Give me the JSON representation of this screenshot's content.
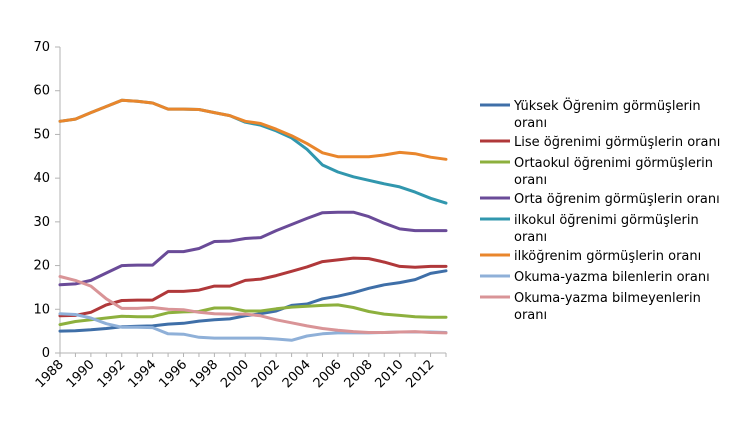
{
  "chart_data": {
    "type": "line",
    "title": "",
    "xlabel": "",
    "ylabel": "",
    "ylim": [
      0,
      70
    ],
    "yticks": [
      0,
      10,
      20,
      30,
      40,
      50,
      60,
      70
    ],
    "xlim": [
      1988,
      2013
    ],
    "xtick_labels": [
      "1988",
      "1990",
      "1992",
      "1994",
      "1996",
      "1998",
      "2000",
      "2002",
      "2004",
      "2006",
      "2008",
      "2010",
      "2012"
    ],
    "grid": false,
    "legend_position": "right",
    "x": [
      1988,
      1989,
      1990,
      1991,
      1992,
      1993,
      1994,
      1995,
      1996,
      1997,
      1998,
      1999,
      2000,
      2001,
      2002,
      2003,
      2004,
      2005,
      2006,
      2007,
      2008,
      2009,
      2010,
      2011,
      2012,
      2013
    ],
    "series": [
      {
        "name": "Yüksek Öğrenim görmüşlerin oranı",
        "legend_lines": [
          "Yüksek Öğrenim görmüşlerin",
          "oranı"
        ],
        "color": "#3F6FA8",
        "values": [
          5,
          5.1,
          5.3,
          5.6,
          6,
          6.1,
          6.2,
          6.6,
          6.8,
          7.3,
          7.6,
          7.8,
          8.5,
          9,
          9.6,
          10.9,
          11.2,
          12.4,
          13,
          13.8,
          14.8,
          15.6,
          16.1,
          16.8,
          18.2,
          18.8
        ]
      },
      {
        "name": "Lise öğrenimi görmüşlerin oranı",
        "legend_lines": [
          "Lise öğrenimi görmüşlerin oranı"
        ],
        "color": "#B0383A",
        "values": [
          8.5,
          8.6,
          9.3,
          11,
          12,
          12.1,
          12.1,
          14.1,
          14.1,
          14.4,
          15.3,
          15.3,
          16.6,
          16.9,
          17.7,
          18.7,
          19.7,
          20.9,
          21.3,
          21.7,
          21.6,
          20.8,
          19.8,
          19.6,
          19.8,
          19.8
        ]
      },
      {
        "name": "Ortaokul öğrenimi görmüşlerin oranı",
        "legend_lines": [
          "Ortaokul öğrenimi görmüşlerin",
          "oranı"
        ],
        "color": "#8DB03E",
        "values": [
          6.5,
          7.2,
          7.6,
          8,
          8.4,
          8.3,
          8.3,
          9.2,
          9.4,
          9.5,
          10.3,
          10.3,
          9.6,
          9.6,
          10.1,
          10.5,
          10.7,
          10.9,
          11,
          10.4,
          9.5,
          8.9,
          8.6,
          8.3,
          8.2,
          8.2
        ]
      },
      {
        "name": "Orta öğrenim görmüşlerin oranı",
        "legend_lines": [
          "Orta öğrenim görmüşlerin oranı"
        ],
        "color": "#6A4B98",
        "values": [
          15.6,
          15.8,
          16.6,
          18.3,
          20,
          20.1,
          20.1,
          23.2,
          23.2,
          23.9,
          25.5,
          25.6,
          26.2,
          26.4,
          28,
          29.4,
          30.8,
          32.1,
          32.2,
          32.2,
          31.2,
          29.7,
          28.4,
          28,
          28,
          28
        ]
      },
      {
        "name": "İlkokul öğrenimi görmüşlerin oranı",
        "legend_lines": [
          "ilkokul öğrenimi görmüşlerin",
          "oranı"
        ],
        "color": "#3197AE",
        "values": [
          53,
          53.5,
          55,
          56.4,
          57.8,
          57.6,
          57.2,
          55.8,
          55.8,
          55.7,
          55,
          54.3,
          52.8,
          52.1,
          50.8,
          49.2,
          46.6,
          43,
          41.4,
          40.3,
          39.5,
          38.7,
          38,
          36.8,
          35.4,
          34.3
        ]
      },
      {
        "name": "İlköğrenim görmüşlerin oranı",
        "legend_lines": [
          "ilköğrenim görmüşlerin oranı"
        ],
        "color": "#E9862C",
        "values": [
          53,
          53.5,
          55,
          56.4,
          57.8,
          57.6,
          57.2,
          55.8,
          55.8,
          55.7,
          55,
          54.3,
          53,
          52.5,
          51.2,
          49.7,
          47.9,
          45.8,
          44.9,
          44.9,
          44.9,
          45.3,
          45.9,
          45.6,
          44.8,
          44.3
        ]
      },
      {
        "name": "Okuma-yazma bilenlerin oranı",
        "legend_lines": [
          "Okuma-yazma bilenlerin  oranı"
        ],
        "color": "#8FB0D8",
        "values": [
          9,
          8.8,
          8,
          6.7,
          5.9,
          5.9,
          5.8,
          4.4,
          4.3,
          3.6,
          3.4,
          3.4,
          3.4,
          3.4,
          3.2,
          2.9,
          3.9,
          4.4,
          4.6,
          4.6,
          4.6,
          4.7,
          4.8,
          4.8,
          4.8,
          4.7
        ]
      },
      {
        "name": "Okuma-yazma bilmeyenlerin oranı",
        "legend_lines": [
          "Okuma-yazma bilmeyenlerin",
          "oranı"
        ],
        "color": "#D99497",
        "values": [
          17.5,
          16.6,
          15.3,
          12.4,
          10.2,
          10.2,
          10.4,
          10,
          9.9,
          9.3,
          9,
          8.9,
          8.9,
          8.5,
          7.6,
          6.9,
          6.2,
          5.6,
          5.2,
          4.9,
          4.7,
          4.7,
          4.8,
          4.9,
          4.7,
          4.6
        ]
      }
    ]
  }
}
